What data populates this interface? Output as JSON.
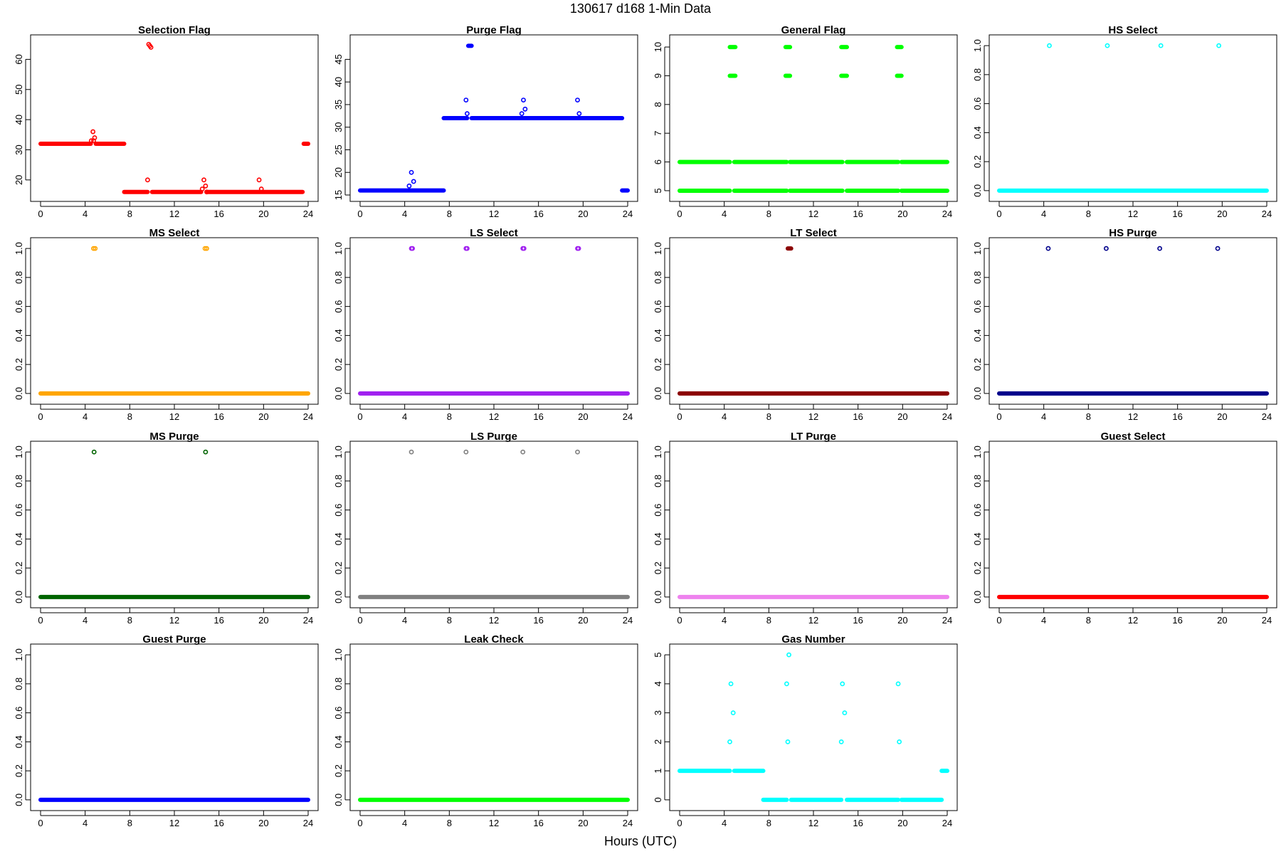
{
  "figure": {
    "title": "130617   d168   1-Min Data",
    "xlabel": "Hours (UTC)"
  },
  "chart_data": [
    {
      "type": "scatter",
      "title": "Selection Flag",
      "color": "#ff0000",
      "xlim": [
        0,
        24
      ],
      "xticks": [
        0,
        4,
        8,
        12,
        16,
        20,
        24
      ],
      "ylim": [
        15,
        66
      ],
      "yticks": [
        20,
        30,
        40,
        50,
        60
      ],
      "segments": [
        {
          "x": [
            0,
            4.5
          ],
          "y": 32
        },
        {
          "x": 4.95,
          "y": 32,
          "x2": 7.5
        },
        {
          "x": [
            7.5,
            9.6
          ],
          "y": 16
        },
        {
          "x": [
            10.0,
            14.4
          ],
          "y": 16
        },
        {
          "x": [
            14.9,
            23.5
          ],
          "y": 16
        },
        {
          "x": [
            23.6,
            24
          ],
          "y": 32
        }
      ],
      "points": [
        [
          4.55,
          33
        ],
        [
          4.7,
          36
        ],
        [
          4.85,
          34
        ],
        [
          4.75,
          33
        ],
        [
          9.6,
          20
        ],
        [
          9.7,
          65
        ],
        [
          9.8,
          64.5
        ],
        [
          9.9,
          64
        ],
        [
          14.5,
          17
        ],
        [
          14.65,
          20
        ],
        [
          14.8,
          18
        ],
        [
          14.9,
          16
        ],
        [
          19.6,
          20
        ],
        [
          19.8,
          17
        ]
      ]
    },
    {
      "type": "scatter",
      "title": "Purge Flag",
      "color": "#0000ff",
      "xlim": [
        0,
        24
      ],
      "xticks": [
        0,
        4,
        8,
        12,
        16,
        20,
        24
      ],
      "ylim": [
        15,
        49
      ],
      "yticks": [
        15,
        20,
        25,
        30,
        35,
        40,
        45
      ],
      "segments": [
        {
          "x": [
            0,
            7.5
          ],
          "y": 16
        },
        {
          "x": [
            7.5,
            9.6
          ],
          "y": 32
        },
        {
          "x": [
            9.7,
            10.0
          ],
          "y": 48
        },
        {
          "x": [
            10.0,
            23.5
          ],
          "y": 32
        },
        {
          "x": [
            23.5,
            24
          ],
          "y": 16
        }
      ],
      "points": [
        [
          4.4,
          17
        ],
        [
          4.6,
          20
        ],
        [
          4.8,
          18
        ],
        [
          9.5,
          36
        ],
        [
          9.6,
          33
        ],
        [
          14.5,
          33
        ],
        [
          14.65,
          36
        ],
        [
          14.8,
          34
        ],
        [
          19.5,
          36
        ],
        [
          19.65,
          33
        ]
      ]
    },
    {
      "type": "scatter",
      "title": "General Flag",
      "color": "#00ff00",
      "xlim": [
        0,
        24
      ],
      "xticks": [
        0,
        4,
        8,
        12,
        16,
        20,
        24
      ],
      "ylim": [
        4.85,
        10.2
      ],
      "yticks": [
        5,
        6,
        7,
        8,
        9,
        10
      ],
      "segments": [
        {
          "x": [
            0,
            4.5
          ],
          "y": 6
        },
        {
          "x": [
            4.9,
            9.6
          ],
          "y": 6
        },
        {
          "x": [
            9.9,
            14.6
          ],
          "y": 6
        },
        {
          "x": [
            15.0,
            19.6
          ],
          "y": 6
        },
        {
          "x": [
            19.9,
            24
          ],
          "y": 6
        },
        {
          "x": [
            0,
            4.5
          ],
          "y": 5
        },
        {
          "x": [
            4.9,
            9.6
          ],
          "y": 5
        },
        {
          "x": [
            9.9,
            14.6
          ],
          "y": 5
        },
        {
          "x": [
            15.0,
            19.6
          ],
          "y": 5
        },
        {
          "x": [
            19.9,
            24
          ],
          "y": 5
        },
        {
          "x": [
            4.5,
            5.0
          ],
          "y": 10
        },
        {
          "x": [
            9.5,
            9.9
          ],
          "y": 10
        },
        {
          "x": [
            14.5,
            15.0
          ],
          "y": 10
        },
        {
          "x": [
            19.5,
            19.9
          ],
          "y": 10
        },
        {
          "x": [
            4.5,
            5.0
          ],
          "y": 9
        },
        {
          "x": [
            9.5,
            9.9
          ],
          "y": 9
        },
        {
          "x": [
            14.5,
            15.0
          ],
          "y": 9
        },
        {
          "x": [
            19.5,
            19.9
          ],
          "y": 9
        }
      ],
      "points": []
    },
    {
      "type": "scatter",
      "title": "HS Select",
      "color": "#00ffff",
      "xlim": [
        0,
        24
      ],
      "xticks": [
        0,
        4,
        8,
        12,
        16,
        20,
        24
      ],
      "ylim": [
        -0.03,
        1.03
      ],
      "yticks": [
        0.0,
        0.2,
        0.4,
        0.6,
        0.8,
        1.0
      ],
      "segments": [
        {
          "x": [
            0,
            24
          ],
          "y": 0
        }
      ],
      "points": [
        [
          4.5,
          1
        ],
        [
          9.7,
          1
        ],
        [
          14.5,
          1
        ],
        [
          19.7,
          1
        ]
      ]
    },
    {
      "type": "scatter",
      "title": "MS Select",
      "color": "#ffa500",
      "xlim": [
        0,
        24
      ],
      "xticks": [
        0,
        4,
        8,
        12,
        16,
        20,
        24
      ],
      "ylim": [
        -0.03,
        1.03
      ],
      "yticks": [
        0.0,
        0.2,
        0.4,
        0.6,
        0.8,
        1.0
      ],
      "segments": [
        {
          "x": [
            0,
            24
          ],
          "y": 0
        }
      ],
      "points": [
        [
          4.75,
          1
        ],
        [
          4.9,
          1
        ],
        [
          14.75,
          1
        ],
        [
          14.9,
          1
        ]
      ]
    },
    {
      "type": "scatter",
      "title": "LS Select",
      "color": "#a020f0",
      "xlim": [
        0,
        24
      ],
      "xticks": [
        0,
        4,
        8,
        12,
        16,
        20,
        24
      ],
      "ylim": [
        -0.03,
        1.03
      ],
      "yticks": [
        0.0,
        0.2,
        0.4,
        0.6,
        0.8,
        1.0
      ],
      "segments": [
        {
          "x": [
            0,
            24
          ],
          "y": 0
        }
      ],
      "points": [
        [
          4.6,
          1
        ],
        [
          4.7,
          1
        ],
        [
          9.5,
          1
        ],
        [
          9.6,
          1
        ],
        [
          14.6,
          1
        ],
        [
          14.7,
          1
        ],
        [
          19.5,
          1
        ],
        [
          19.6,
          1
        ]
      ]
    },
    {
      "type": "scatter",
      "title": "LT Select",
      "color": "#8b0000",
      "xlim": [
        0,
        24
      ],
      "xticks": [
        0,
        4,
        8,
        12,
        16,
        20,
        24
      ],
      "ylim": [
        -0.03,
        1.03
      ],
      "yticks": [
        0.0,
        0.2,
        0.4,
        0.6,
        0.8,
        1.0
      ],
      "segments": [
        {
          "x": [
            0,
            24
          ],
          "y": 0
        },
        {
          "x": [
            9.7,
            10.0
          ],
          "y": 1
        }
      ],
      "points": []
    },
    {
      "type": "scatter",
      "title": "HS Purge",
      "color": "#00008b",
      "xlim": [
        0,
        24
      ],
      "xticks": [
        0,
        4,
        8,
        12,
        16,
        20,
        24
      ],
      "ylim": [
        -0.03,
        1.03
      ],
      "yticks": [
        0.0,
        0.2,
        0.4,
        0.6,
        0.8,
        1.0
      ],
      "segments": [
        {
          "x": [
            0,
            24
          ],
          "y": 0
        }
      ],
      "points": [
        [
          4.4,
          1
        ],
        [
          9.6,
          1
        ],
        [
          14.4,
          1
        ],
        [
          19.6,
          1
        ]
      ]
    },
    {
      "type": "scatter",
      "title": "MS Purge",
      "color": "#006400",
      "xlim": [
        0,
        24
      ],
      "xticks": [
        0,
        4,
        8,
        12,
        16,
        20,
        24
      ],
      "ylim": [
        -0.03,
        1.03
      ],
      "yticks": [
        0.0,
        0.2,
        0.4,
        0.6,
        0.8,
        1.0
      ],
      "segments": [
        {
          "x": [
            0,
            24
          ],
          "y": 0
        }
      ],
      "points": [
        [
          4.8,
          1
        ],
        [
          14.8,
          1
        ]
      ]
    },
    {
      "type": "scatter",
      "title": "LS Purge",
      "color": "#808080",
      "xlim": [
        0,
        24
      ],
      "xticks": [
        0,
        4,
        8,
        12,
        16,
        20,
        24
      ],
      "ylim": [
        -0.03,
        1.03
      ],
      "yticks": [
        0.0,
        0.2,
        0.4,
        0.6,
        0.8,
        1.0
      ],
      "segments": [
        {
          "x": [
            0,
            24
          ],
          "y": 0
        }
      ],
      "points": [
        [
          4.6,
          1
        ],
        [
          9.5,
          1
        ],
        [
          14.6,
          1
        ],
        [
          19.5,
          1
        ]
      ]
    },
    {
      "type": "scatter",
      "title": "LT Purge",
      "color": "#ee82ee",
      "xlim": [
        0,
        24
      ],
      "xticks": [
        0,
        4,
        8,
        12,
        16,
        20,
        24
      ],
      "ylim": [
        -0.03,
        1.03
      ],
      "yticks": [
        0.0,
        0.2,
        0.4,
        0.6,
        0.8,
        1.0
      ],
      "segments": [
        {
          "x": [
            0,
            24
          ],
          "y": 0
        }
      ],
      "points": []
    },
    {
      "type": "scatter",
      "title": "Guest Select",
      "color": "#ff0000",
      "xlim": [
        0,
        24
      ],
      "xticks": [
        0,
        4,
        8,
        12,
        16,
        20,
        24
      ],
      "ylim": [
        -0.03,
        1.03
      ],
      "yticks": [
        0.0,
        0.2,
        0.4,
        0.6,
        0.8,
        1.0
      ],
      "segments": [
        {
          "x": [
            0,
            24
          ],
          "y": 0
        }
      ],
      "points": []
    },
    {
      "type": "scatter",
      "title": "Guest Purge",
      "color": "#0000ff",
      "xlim": [
        0,
        24
      ],
      "xticks": [
        0,
        4,
        8,
        12,
        16,
        20,
        24
      ],
      "ylim": [
        -0.03,
        1.03
      ],
      "yticks": [
        0.0,
        0.2,
        0.4,
        0.6,
        0.8,
        1.0
      ],
      "segments": [
        {
          "x": [
            0,
            24
          ],
          "y": 0
        }
      ],
      "points": []
    },
    {
      "type": "scatter",
      "title": "Leak Check",
      "color": "#00ff00",
      "xlim": [
        0,
        24
      ],
      "xticks": [
        0,
        4,
        8,
        12,
        16,
        20,
        24
      ],
      "ylim": [
        -0.03,
        1.03
      ],
      "yticks": [
        0.0,
        0.2,
        0.4,
        0.6,
        0.8,
        1.0
      ],
      "segments": [
        {
          "x": [
            0,
            24
          ],
          "y": 0
        }
      ],
      "points": []
    },
    {
      "type": "scatter",
      "title": "Gas Number",
      "color": "#00ffff",
      "xlim": [
        0,
        24
      ],
      "xticks": [
        0,
        4,
        8,
        12,
        16,
        20,
        24
      ],
      "ylim": [
        -0.15,
        5.15
      ],
      "yticks": [
        0,
        1,
        2,
        3,
        4,
        5
      ],
      "segments": [
        {
          "x": [
            0,
            4.5
          ],
          "y": 1
        },
        {
          "x": [
            4.9,
            7.5
          ],
          "y": 1
        },
        {
          "x": [
            7.5,
            9.6
          ],
          "y": 0
        },
        {
          "x": [
            10.0,
            14.5
          ],
          "y": 0
        },
        {
          "x": [
            15.0,
            19.6
          ],
          "y": 0
        },
        {
          "x": [
            19.9,
            23.5
          ],
          "y": 0
        },
        {
          "x": [
            23.5,
            24
          ],
          "y": 1
        }
      ],
      "points": [
        [
          4.5,
          2
        ],
        [
          4.6,
          4
        ],
        [
          4.8,
          3
        ],
        [
          9.6,
          4
        ],
        [
          9.7,
          2
        ],
        [
          9.8,
          5
        ],
        [
          14.5,
          2
        ],
        [
          14.6,
          4
        ],
        [
          14.8,
          3
        ],
        [
          19.6,
          4
        ],
        [
          19.7,
          2
        ]
      ]
    }
  ]
}
